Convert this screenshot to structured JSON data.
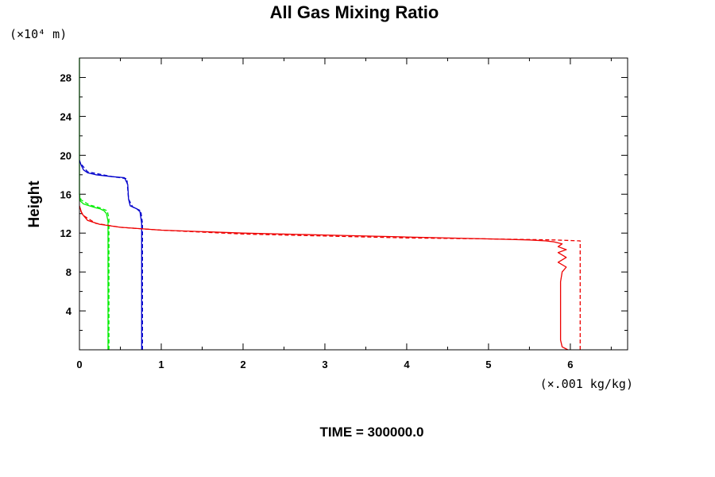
{
  "chart_data": {
    "type": "line",
    "title": "All Gas Mixing Ratio",
    "ylabel": "Height",
    "y_unit_label": "(×10⁴ m)",
    "x_unit_label": "(×.001 kg/kg)",
    "footer": "TIME = 300000.0",
    "xlim": [
      0,
      6.7
    ],
    "ylim": [
      0,
      30
    ],
    "x_ticks": [
      "0",
      "1",
      "2",
      "3",
      "4",
      "5",
      "6"
    ],
    "y_ticks": [
      "4",
      "8",
      "12",
      "16",
      "20",
      "24",
      "28"
    ],
    "grid": false,
    "legend": "none",
    "series": [
      {
        "color": "#00ee00",
        "style": "solid",
        "x": [
          0.35,
          0.35,
          0.35,
          0.35,
          0.33,
          0.3,
          0.25,
          0.2,
          0.12,
          0.05,
          0.01,
          0.0,
          0.0,
          0.0
        ],
        "y": [
          0.0,
          7.0,
          12.5,
          13.2,
          14.0,
          14.3,
          14.5,
          14.6,
          14.8,
          15.0,
          15.3,
          16.0,
          22.0,
          30.0
        ]
      },
      {
        "color": "#00ee00",
        "style": "dashed",
        "x": [
          0.36,
          0.36,
          0.36,
          0.34,
          0.25,
          0.12,
          0.02,
          0.0
        ],
        "y": [
          0.0,
          7.0,
          13.5,
          14.3,
          14.6,
          14.9,
          15.4,
          16.0
        ]
      },
      {
        "color": "#0000cc",
        "style": "solid",
        "x": [
          0.76,
          0.76,
          0.76,
          0.76,
          0.74,
          0.7,
          0.62,
          0.6,
          0.59,
          0.55,
          0.4,
          0.2,
          0.1,
          0.05,
          0.02,
          0.0
        ],
        "y": [
          0.0,
          7.0,
          11.0,
          13.0,
          14.2,
          14.5,
          14.8,
          15.5,
          17.0,
          17.7,
          17.8,
          18.0,
          18.2,
          18.5,
          19.0,
          19.5
        ]
      },
      {
        "color": "#0000cc",
        "style": "dashed",
        "x": [
          0.77,
          0.77,
          0.77,
          0.75,
          0.65,
          0.6,
          0.58,
          0.4,
          0.1,
          0.0
        ],
        "y": [
          0.0,
          7.0,
          13.0,
          14.3,
          14.7,
          15.5,
          17.6,
          17.8,
          18.3,
          19.3
        ]
      },
      {
        "color": "#ee0000",
        "style": "solid",
        "x": [
          5.97,
          5.9,
          5.88,
          5.88,
          5.88,
          5.9,
          5.95,
          5.85,
          5.95,
          5.85,
          5.95,
          5.85,
          5.9,
          5.8,
          5.7,
          5.5,
          5.0,
          4.0,
          3.0,
          2.0,
          1.0,
          0.5,
          0.25,
          0.1,
          0.03,
          0.0
        ],
        "y": [
          0.0,
          0.3,
          1.0,
          3.0,
          7.0,
          8.0,
          8.5,
          9.0,
          9.5,
          10.0,
          10.3,
          10.6,
          10.9,
          11.1,
          11.2,
          11.3,
          11.4,
          11.6,
          11.8,
          12.0,
          12.3,
          12.6,
          12.9,
          13.3,
          14.0,
          14.8
        ]
      },
      {
        "color": "#ee0000",
        "style": "dashed",
        "x": [
          6.12,
          6.12,
          5.8,
          5.0,
          4.0,
          3.0,
          2.0,
          1.0,
          0.5,
          0.2,
          0.05,
          0.0
        ],
        "y": [
          0.0,
          11.2,
          11.3,
          11.4,
          11.5,
          11.7,
          11.9,
          12.3,
          12.6,
          13.0,
          13.8,
          14.5
        ]
      }
    ]
  }
}
